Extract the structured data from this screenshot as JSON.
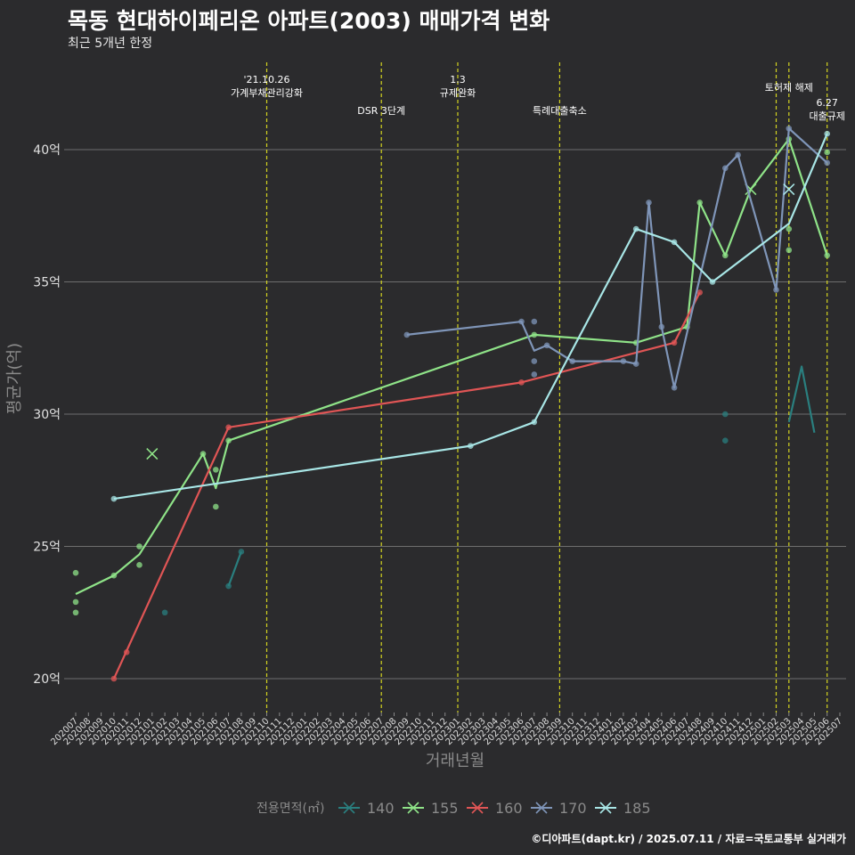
{
  "title": "목동 현대하이페리온 아파트(2003) 매매가격 변화",
  "subtitle": "최근 5개년 한정",
  "caption": "©디아파트(dapt.kr) / 2025.07.11 / 자료=국토교통부 실거래가",
  "chart_data": {
    "type": "line",
    "xlabel": "거래년월",
    "ylabel": "평균가(억)",
    "legend_title": "전용면적(㎡)",
    "legend_position": "bottom",
    "ylim": [
      19,
      43
    ],
    "yticks": [
      20,
      25,
      30,
      35,
      40
    ],
    "ytick_suffix": "억",
    "grid": true,
    "categories": [
      "202007",
      "202008",
      "202009",
      "202010",
      "202011",
      "202012",
      "202101",
      "202102",
      "202103",
      "202104",
      "202105",
      "202106",
      "202107",
      "202108",
      "202109",
      "202110",
      "202111",
      "202112",
      "202201",
      "202202",
      "202203",
      "202204",
      "202205",
      "202206",
      "202207",
      "202208",
      "202209",
      "202210",
      "202211",
      "202212",
      "202301",
      "202302",
      "202303",
      "202304",
      "202305",
      "202306",
      "202307",
      "202308",
      "202309",
      "202310",
      "202311",
      "202312",
      "202401",
      "202402",
      "202403",
      "202404",
      "202405",
      "202406",
      "202407",
      "202408",
      "202409",
      "202410",
      "202411",
      "202412",
      "202501",
      "202502",
      "202503",
      "202504",
      "202505",
      "202506",
      "202507"
    ],
    "events": [
      {
        "date": "202110",
        "label": "'21.10.26 가계부채관리강화"
      },
      {
        "date": "202207",
        "label": "DSR 3단계"
      },
      {
        "date": "202301",
        "label": "1.3 규제완화"
      },
      {
        "date": "202309",
        "label": "특례대출축소"
      },
      {
        "date": "202502",
        "label": ""
      },
      {
        "date": "202503",
        "label": "토허제 해제"
      },
      {
        "date": "202506",
        "label": "6.27 대출규제"
      }
    ],
    "series": [
      {
        "name": "140",
        "color": "#2a7f7f",
        "line": [
          [
            "202107",
            23.5
          ],
          [
            "202108",
            24.8
          ]
        ],
        "points": [
          [
            "202102",
            22.5
          ],
          [
            "202107",
            23.5
          ],
          [
            "202108",
            24.8
          ],
          [
            "202410",
            30.0
          ],
          [
            "202410",
            29.0
          ]
        ],
        "line2": [
          [
            "202503",
            29.7
          ],
          [
            "202504",
            31.8
          ],
          [
            "202505",
            29.3
          ]
        ],
        "crosses": []
      },
      {
        "name": "155",
        "color": "#8fe388",
        "line": [
          [
            "202007",
            23.2
          ],
          [
            "202010",
            23.9
          ],
          [
            "202012",
            24.7
          ],
          [
            "202105",
            28.5
          ],
          [
            "202106",
            27.2
          ],
          [
            "202107",
            29.0
          ],
          [
            "202307",
            33.0
          ],
          [
            "202403",
            32.7
          ],
          [
            "202407",
            33.3
          ],
          [
            "202408",
            38.0
          ],
          [
            "202410",
            36.0
          ],
          [
            "202412",
            38.5
          ],
          [
            "202503",
            40.4
          ],
          [
            "202506",
            36.0
          ]
        ],
        "points": [
          [
            "202007",
            24.0
          ],
          [
            "202007",
            22.9
          ],
          [
            "202007",
            22.5
          ],
          [
            "202010",
            23.9
          ],
          [
            "202012",
            25.0
          ],
          [
            "202012",
            24.3
          ],
          [
            "202105",
            28.5
          ],
          [
            "202106",
            27.9
          ],
          [
            "202106",
            26.5
          ],
          [
            "202107",
            29.0
          ],
          [
            "202307",
            33.0
          ],
          [
            "202403",
            32.7
          ],
          [
            "202407",
            33.3
          ],
          [
            "202408",
            38.0
          ],
          [
            "202410",
            36.0
          ],
          [
            "202503",
            40.4
          ],
          [
            "202503",
            37.0
          ],
          [
            "202503",
            36.2
          ],
          [
            "202506",
            39.9
          ],
          [
            "202506",
            36.0
          ]
        ],
        "crosses": [
          [
            "202101",
            28.5
          ],
          [
            "202412",
            38.5
          ]
        ]
      },
      {
        "name": "160",
        "color": "#e05555",
        "line": [
          [
            "202010",
            20.0
          ],
          [
            "202107",
            29.5
          ],
          [
            "202306",
            31.2
          ],
          [
            "202406",
            32.7
          ],
          [
            "202408",
            34.6
          ]
        ],
        "points": [
          [
            "202010",
            20.0
          ],
          [
            "202011",
            21.0
          ],
          [
            "202107",
            29.5
          ],
          [
            "202306",
            31.2
          ],
          [
            "202406",
            32.7
          ],
          [
            "202408",
            34.6
          ]
        ],
        "crosses": []
      },
      {
        "name": "170",
        "color": "#7f95b8",
        "line": [
          [
            "202209",
            33.0
          ],
          [
            "202306",
            33.5
          ],
          [
            "202307",
            32.4
          ],
          [
            "202308",
            32.6
          ],
          [
            "202310",
            32.0
          ],
          [
            "202402",
            32.0
          ],
          [
            "202403",
            31.9
          ],
          [
            "202404",
            38.0
          ],
          [
            "202405",
            33.3
          ],
          [
            "202406",
            31.0
          ],
          [
            "202410",
            39.3
          ],
          [
            "202411",
            39.8
          ],
          [
            "202502",
            34.7
          ],
          [
            "202503",
            40.8
          ],
          [
            "202506",
            39.5
          ]
        ],
        "points": [
          [
            "202209",
            33.0
          ],
          [
            "202306",
            33.5
          ],
          [
            "202307",
            33.5
          ],
          [
            "202307",
            32.0
          ],
          [
            "202307",
            31.5
          ],
          [
            "202308",
            32.6
          ],
          [
            "202310",
            32.0
          ],
          [
            "202402",
            32.0
          ],
          [
            "202403",
            31.9
          ],
          [
            "202404",
            38.0
          ],
          [
            "202405",
            33.3
          ],
          [
            "202406",
            31.0
          ],
          [
            "202410",
            39.3
          ],
          [
            "202411",
            39.8
          ],
          [
            "202502",
            34.7
          ],
          [
            "202503",
            40.8
          ],
          [
            "202506",
            39.5
          ]
        ],
        "crosses": []
      },
      {
        "name": "185",
        "color": "#a8e6e6",
        "line": [
          [
            "202010",
            26.8
          ],
          [
            "202302",
            28.8
          ],
          [
            "202307",
            29.7
          ],
          [
            "202403",
            37.0
          ],
          [
            "202406",
            36.5
          ],
          [
            "202409",
            35.0
          ],
          [
            "202503",
            37.2
          ],
          [
            "202506",
            40.6
          ]
        ],
        "points": [
          [
            "202010",
            26.8
          ],
          [
            "202302",
            28.8
          ],
          [
            "202307",
            29.7
          ],
          [
            "202403",
            37.0
          ],
          [
            "202406",
            36.5
          ],
          [
            "202409",
            35.0
          ],
          [
            "202506",
            40.6
          ]
        ],
        "crosses": [
          [
            "202503",
            38.5
          ]
        ]
      }
    ]
  }
}
